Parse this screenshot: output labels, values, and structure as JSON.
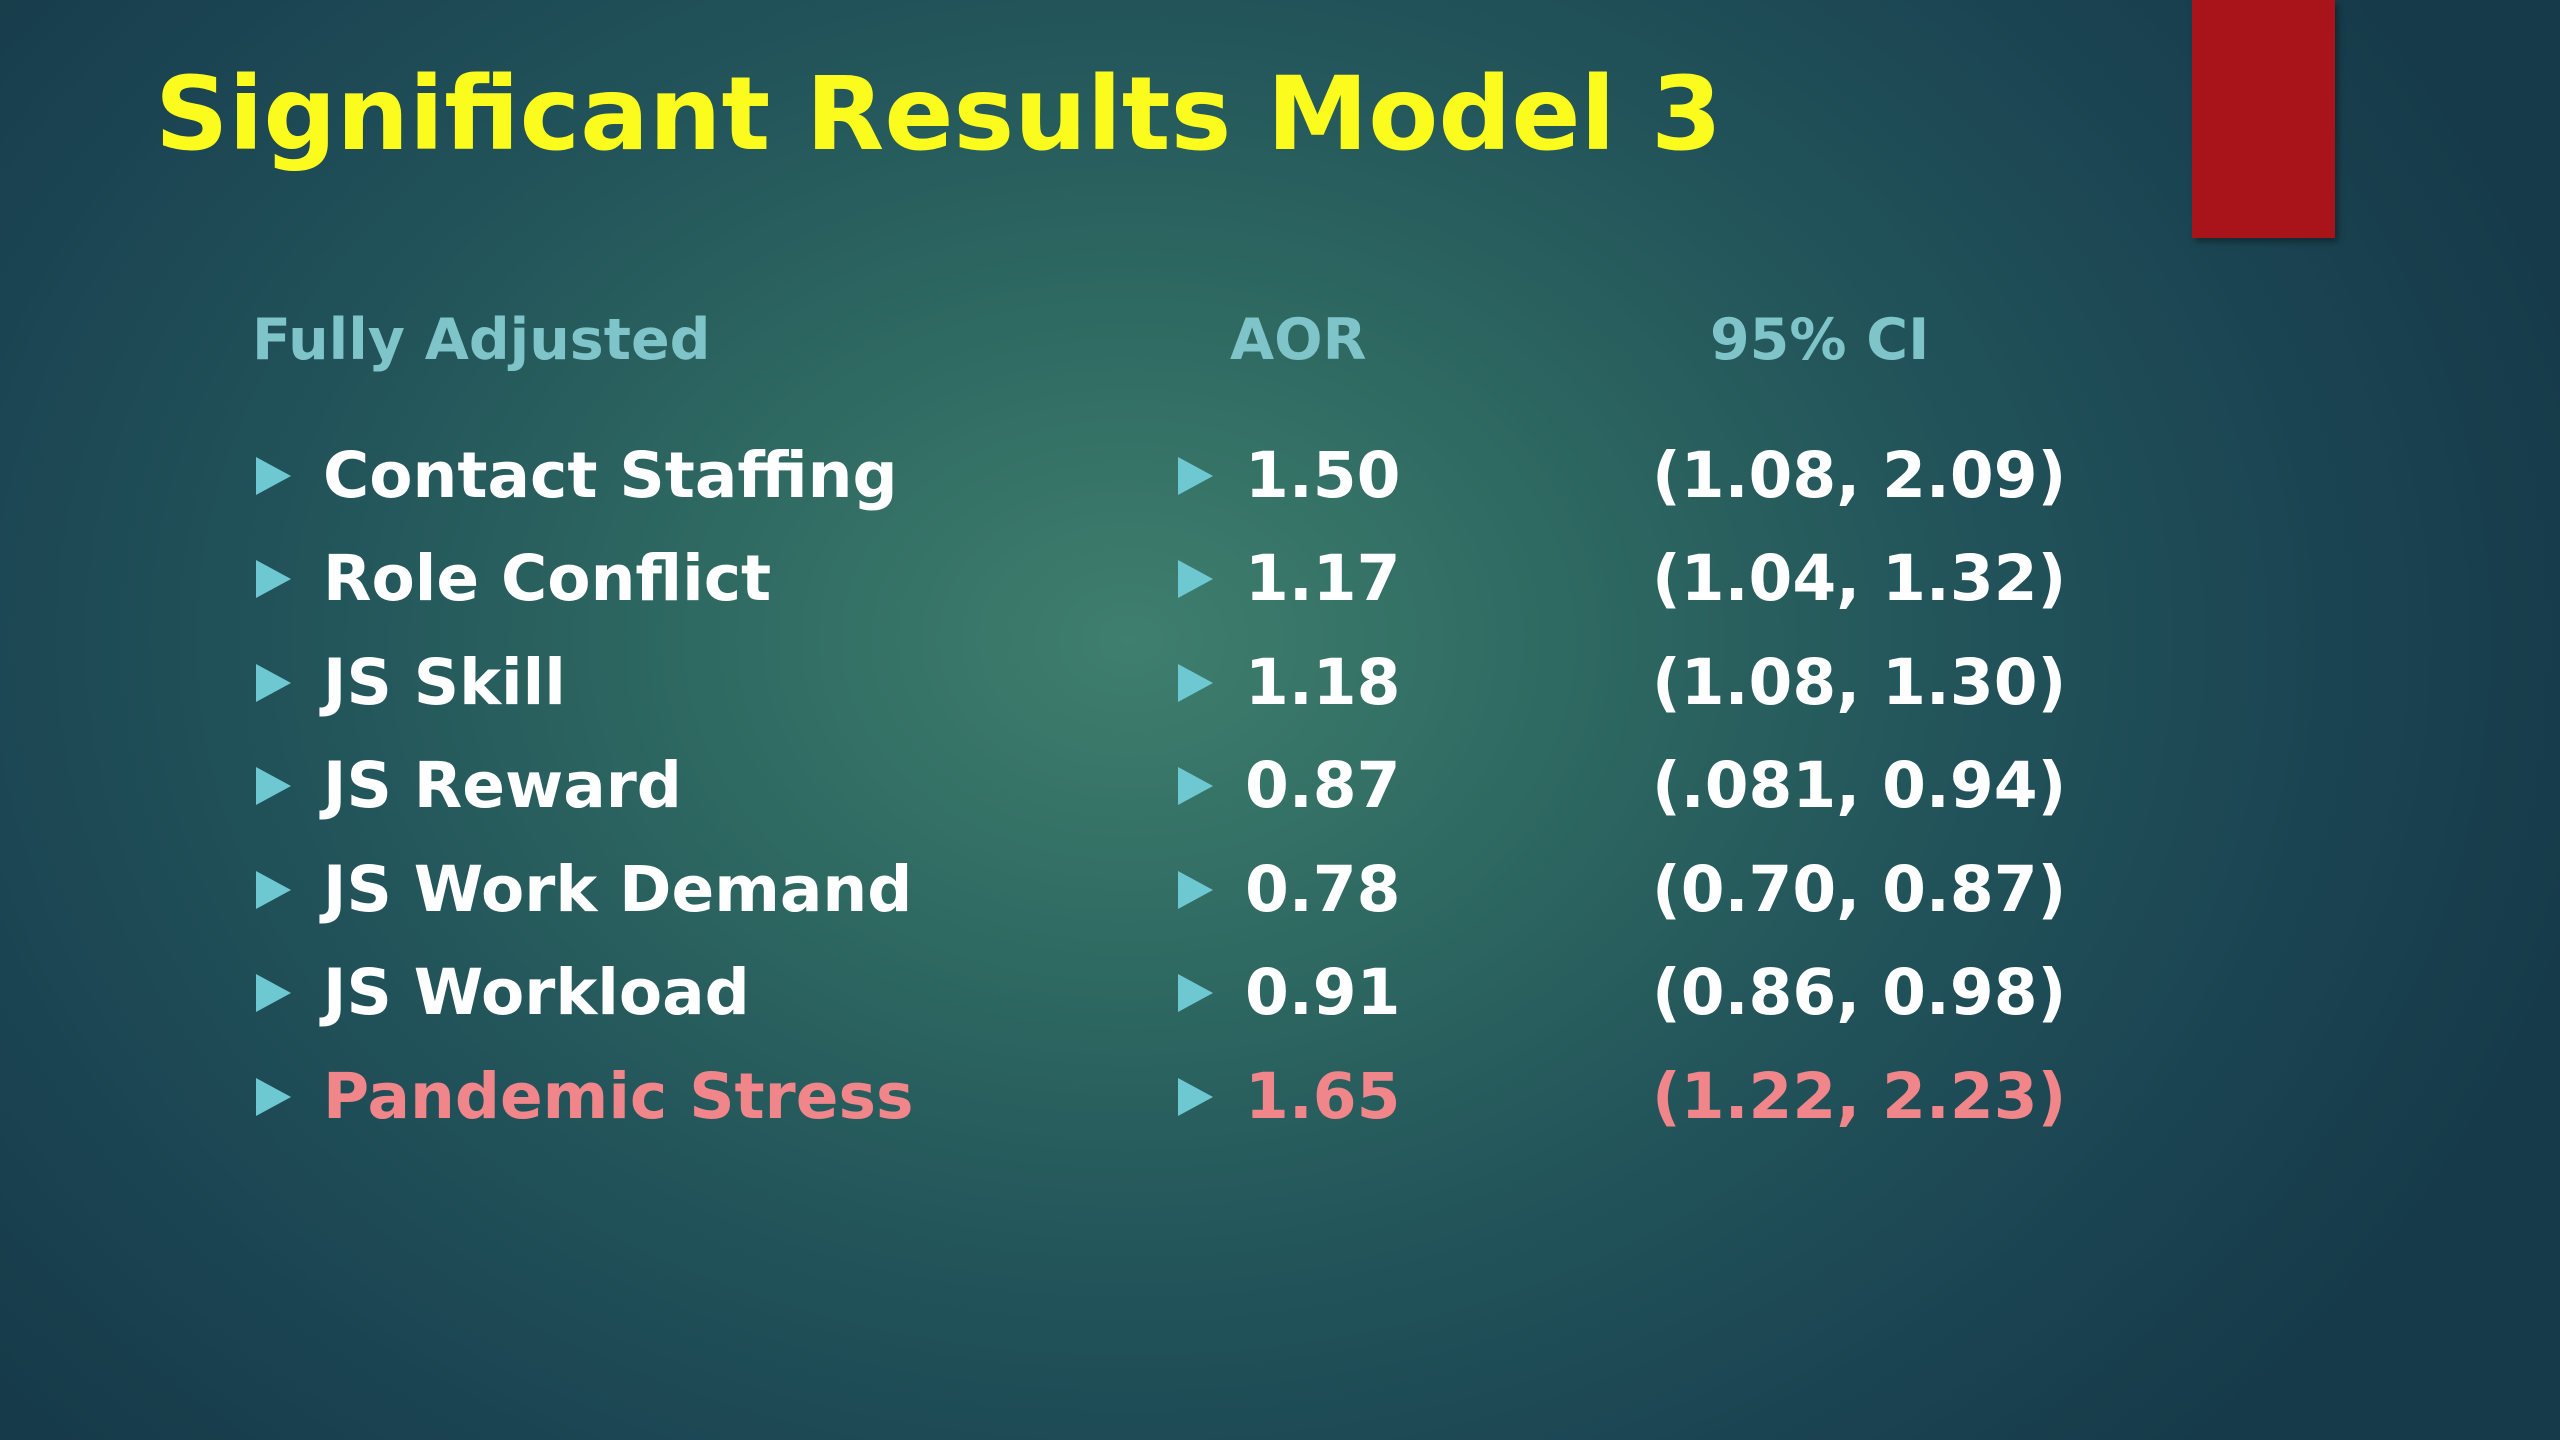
{
  "slide": {
    "title": "Significant Results Model 3",
    "accent_color": "#a8141a",
    "title_color": "#fbfb1e",
    "highlight_color": "#f0858a"
  },
  "table": {
    "headers": {
      "label": "Fully Adjusted",
      "aor": "AOR",
      "ci": "95% CI"
    },
    "rows": [
      {
        "label": "Contact Staffing",
        "aor": "1.50",
        "ci": "(1.08, 2.09)"
      },
      {
        "label": "Role Conflict",
        "aor": "1.17",
        "ci": "(1.04, 1.32)"
      },
      {
        "label": "JS Skill",
        "aor": "1.18",
        "ci": "(1.08, 1.30)"
      },
      {
        "label": "JS Reward",
        "aor": "0.87",
        "ci": "(.081, 0.94)"
      },
      {
        "label": "JS Work Demand",
        "aor": "0.78",
        "ci": "(0.70, 0.87)"
      },
      {
        "label": "JS Workload",
        "aor": "0.91",
        "ci": "(0.86, 0.98)"
      },
      {
        "label": "Pandemic Stress",
        "aor": "1.65",
        "ci": "(1.22, 2.23)",
        "highlighted": true
      }
    ]
  },
  "icons": {
    "bullet": "triangle-right-icon"
  }
}
